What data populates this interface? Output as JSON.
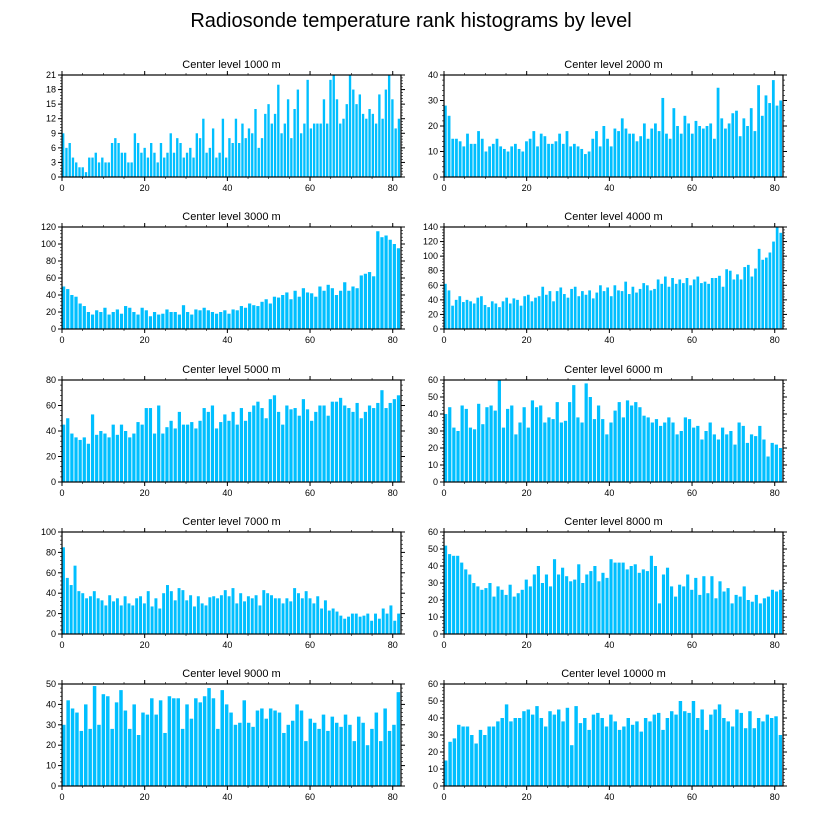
{
  "title": "Radiosonde temperature rank histograms by level",
  "bar_color": "#00BFFF",
  "chart_data": [
    {
      "type": "bar",
      "title": "Center level 1000 m",
      "xlim": [
        0,
        82
      ],
      "ylim": [
        0,
        21
      ],
      "yticks": [
        0,
        3,
        6,
        9,
        12,
        15,
        18,
        21
      ],
      "xticks": [
        0,
        20,
        40,
        60,
        80
      ],
      "values": [
        9,
        6,
        7,
        4,
        3,
        2,
        2,
        1,
        4,
        4,
        5,
        3,
        4,
        3,
        3,
        7,
        8,
        7,
        5,
        5,
        3,
        3,
        9,
        7,
        5,
        6,
        4,
        7,
        5,
        3,
        7,
        4,
        5,
        9,
        5,
        8,
        7,
        4,
        5,
        6,
        4,
        9,
        8,
        12,
        5,
        6,
        10,
        4,
        5,
        12,
        4,
        8,
        7,
        12,
        7,
        11,
        8,
        10,
        9,
        14,
        6,
        8,
        13,
        15,
        11,
        13,
        19,
        9,
        11,
        16,
        8,
        14,
        18,
        9,
        11,
        20,
        10,
        11,
        11,
        11,
        16,
        11,
        20,
        21,
        16,
        11,
        12,
        15,
        21,
        18,
        15,
        17,
        13,
        12,
        14,
        13,
        11,
        17,
        12,
        18,
        21,
        16,
        10,
        12
      ]
    },
    {
      "type": "bar",
      "title": "Center level 2000 m",
      "xlim": [
        0,
        82
      ],
      "ylim": [
        0,
        40
      ],
      "yticks": [
        0,
        10,
        20,
        30,
        40
      ],
      "xticks": [
        0,
        20,
        40,
        60,
        80
      ],
      "values": [
        28,
        24,
        15,
        15,
        14,
        12,
        17,
        13,
        13,
        18,
        15,
        10,
        12,
        13,
        15,
        12,
        11,
        10,
        12,
        13,
        11,
        10,
        14,
        15,
        18,
        12,
        17,
        16,
        13,
        13,
        14,
        17,
        13,
        18,
        12,
        13,
        12,
        11,
        9,
        10,
        15,
        18,
        12,
        20,
        15,
        12,
        19,
        18,
        23,
        19,
        17,
        17,
        14,
        16,
        21,
        15,
        19,
        21,
        18,
        31,
        17,
        15,
        27,
        20,
        17,
        24,
        21,
        17,
        22,
        20,
        19,
        20,
        21,
        15,
        35,
        23,
        19,
        21,
        25,
        26,
        16,
        23,
        20,
        27,
        18,
        36,
        24,
        32,
        29,
        38,
        28,
        30
      ]
    },
    {
      "type": "bar",
      "title": "Center level 3000 m",
      "xlim": [
        0,
        82
      ],
      "ylim": [
        0,
        120
      ],
      "yticks": [
        0,
        20,
        40,
        60,
        80,
        100,
        120
      ],
      "xticks": [
        0,
        20,
        40,
        60,
        80
      ],
      "values": [
        50,
        47,
        40,
        38,
        30,
        27,
        20,
        17,
        22,
        20,
        25,
        17,
        20,
        23,
        18,
        27,
        25,
        20,
        17,
        25,
        22,
        15,
        20,
        17,
        18,
        23,
        20,
        20,
        17,
        28,
        20,
        17,
        23,
        22,
        25,
        22,
        20,
        18,
        20,
        22,
        18,
        23,
        22,
        27,
        25,
        30,
        28,
        27,
        32,
        35,
        30,
        38,
        37,
        40,
        43,
        35,
        45,
        38,
        48,
        43,
        42,
        38,
        50,
        45,
        52,
        48,
        40,
        45,
        55,
        45,
        50,
        48,
        63,
        65,
        67,
        62,
        115,
        108,
        110,
        105,
        100,
        95
      ]
    },
    {
      "type": "bar",
      "title": "Center level 4000 m",
      "xlim": [
        0,
        82
      ],
      "ylim": [
        0,
        140
      ],
      "yticks": [
        0,
        20,
        40,
        60,
        80,
        100,
        120,
        140
      ],
      "xticks": [
        0,
        20,
        40,
        60,
        80
      ],
      "values": [
        62,
        53,
        32,
        40,
        45,
        37,
        40,
        38,
        35,
        43,
        45,
        33,
        30,
        38,
        35,
        30,
        38,
        43,
        35,
        42,
        40,
        32,
        45,
        47,
        38,
        43,
        45,
        58,
        47,
        52,
        38,
        52,
        57,
        48,
        43,
        55,
        58,
        45,
        52,
        47,
        53,
        42,
        50,
        60,
        52,
        57,
        45,
        60,
        53,
        52,
        65,
        48,
        58,
        50,
        55,
        63,
        60,
        53,
        55,
        68,
        62,
        72,
        58,
        70,
        62,
        68,
        63,
        70,
        60,
        68,
        72,
        63,
        65,
        62,
        70,
        70,
        73,
        58,
        82,
        80,
        68,
        75,
        68,
        85,
        88,
        72,
        83,
        110,
        95,
        98,
        105,
        120,
        140,
        132
      ]
    },
    {
      "type": "bar",
      "title": "Center level 5000 m",
      "xlim": [
        0,
        82
      ],
      "ylim": [
        0,
        80
      ],
      "yticks": [
        0,
        20,
        40,
        60,
        80
      ],
      "xticks": [
        0,
        20,
        40,
        60,
        80
      ],
      "values": [
        45,
        50,
        38,
        35,
        33,
        35,
        30,
        53,
        37,
        40,
        38,
        35,
        45,
        37,
        45,
        40,
        35,
        38,
        47,
        45,
        58,
        58,
        38,
        60,
        38,
        43,
        48,
        42,
        55,
        45,
        45,
        47,
        42,
        48,
        58,
        55,
        60,
        42,
        47,
        53,
        48,
        55,
        45,
        58,
        48,
        55,
        60,
        63,
        58,
        50,
        65,
        68,
        55,
        45,
        60,
        57,
        58,
        52,
        65,
        57,
        48,
        55,
        60,
        60,
        52,
        63,
        63,
        66,
        60,
        58,
        55,
        62,
        50,
        55,
        60,
        58,
        62,
        72,
        58,
        62,
        65,
        68
      ]
    },
    {
      "type": "bar",
      "title": "Center level 6000 m",
      "xlim": [
        0,
        82
      ],
      "ylim": [
        0,
        60
      ],
      "yticks": [
        0,
        10,
        20,
        30,
        40,
        50,
        60
      ],
      "xticks": [
        0,
        20,
        40,
        60,
        80
      ],
      "values": [
        40,
        44,
        32,
        30,
        45,
        43,
        32,
        31,
        46,
        34,
        44,
        45,
        42,
        60,
        32,
        43,
        45,
        28,
        35,
        44,
        32,
        48,
        44,
        45,
        35,
        38,
        37,
        47,
        35,
        36,
        47,
        57,
        38,
        35,
        58,
        50,
        37,
        45,
        37,
        28,
        35,
        42,
        47,
        38,
        48,
        45,
        47,
        44,
        39,
        38,
        35,
        37,
        33,
        35,
        38,
        35,
        28,
        30,
        38,
        37,
        32,
        33,
        25,
        30,
        35,
        28,
        25,
        32,
        28,
        30,
        22,
        35,
        33,
        23,
        28,
        27,
        33,
        25,
        15,
        23,
        22,
        20
      ]
    },
    {
      "type": "bar",
      "title": "Center level 7000 m",
      "xlim": [
        0,
        82
      ],
      "ylim": [
        0,
        100
      ],
      "yticks": [
        0,
        20,
        40,
        60,
        80,
        100
      ],
      "xticks": [
        0,
        20,
        40,
        60,
        80
      ],
      "values": [
        85,
        55,
        48,
        67,
        42,
        40,
        35,
        37,
        42,
        35,
        33,
        28,
        38,
        32,
        35,
        28,
        37,
        30,
        28,
        35,
        37,
        30,
        42,
        27,
        35,
        25,
        40,
        48,
        42,
        33,
        45,
        43,
        33,
        38,
        27,
        37,
        30,
        28,
        36,
        37,
        35,
        38,
        43,
        37,
        45,
        30,
        40,
        32,
        37,
        35,
        38,
        28,
        43,
        40,
        38,
        35,
        35,
        30,
        35,
        32,
        45,
        40,
        35,
        42,
        35,
        30,
        37,
        25,
        33,
        23,
        25,
        22,
        18,
        15,
        17,
        20,
        20,
        17,
        18,
        20,
        13,
        20,
        15,
        25,
        20,
        28,
        13,
        20
      ]
    },
    {
      "type": "bar",
      "title": "Center level 8000 m",
      "xlim": [
        0,
        82
      ],
      "ylim": [
        0,
        60
      ],
      "yticks": [
        0,
        10,
        20,
        30,
        40,
        50,
        60
      ],
      "xticks": [
        0,
        20,
        40,
        60,
        80
      ],
      "values": [
        52,
        47,
        46,
        46,
        42,
        38,
        35,
        30,
        28,
        26,
        27,
        30,
        22,
        28,
        26,
        23,
        29,
        22,
        24,
        26,
        32,
        28,
        35,
        40,
        30,
        35,
        28,
        44,
        35,
        39,
        34,
        31,
        32,
        41,
        30,
        35,
        37,
        40,
        31,
        36,
        33,
        44,
        42,
        42,
        42,
        38,
        40,
        41,
        36,
        38,
        37,
        46,
        40,
        18,
        35,
        39,
        28,
        22,
        29,
        28,
        35,
        26,
        33,
        23,
        34,
        24,
        34,
        21,
        31,
        25,
        27,
        18,
        23,
        22,
        28,
        20,
        19,
        23,
        18,
        21,
        22,
        26,
        25,
        26
      ]
    },
    {
      "type": "bar",
      "title": "Center level 9000 m",
      "xlim": [
        0,
        82
      ],
      "ylim": [
        0,
        50
      ],
      "yticks": [
        0,
        10,
        20,
        30,
        40,
        50
      ],
      "xticks": [
        0,
        20,
        40,
        60,
        80
      ],
      "values": [
        30,
        42,
        38,
        36,
        27,
        40,
        28,
        49,
        30,
        45,
        44,
        28,
        41,
        47,
        37,
        28,
        40,
        25,
        36,
        35,
        43,
        35,
        42,
        26,
        44,
        43,
        43,
        28,
        40,
        33,
        43,
        41,
        44,
        48,
        43,
        28,
        47,
        40,
        36,
        30,
        31,
        42,
        31,
        29,
        37,
        38,
        33,
        38,
        37,
        36,
        26,
        30,
        32,
        40,
        37,
        22,
        33,
        31,
        28,
        35,
        27,
        34,
        31,
        29,
        35,
        30,
        22,
        34,
        31,
        20,
        28,
        36,
        22,
        38,
        27,
        30,
        46
      ]
    },
    {
      "type": "bar",
      "title": "Center level 10000 m",
      "xlim": [
        0,
        82
      ],
      "ylim": [
        0,
        60
      ],
      "yticks": [
        0,
        10,
        20,
        30,
        40,
        50,
        60
      ],
      "xticks": [
        0,
        20,
        40,
        60,
        80
      ],
      "values": [
        15,
        26,
        28,
        36,
        35,
        35,
        30,
        25,
        33,
        30,
        35,
        35,
        38,
        40,
        48,
        38,
        40,
        40,
        44,
        45,
        42,
        47,
        40,
        35,
        44,
        42,
        45,
        38,
        46,
        24,
        47,
        37,
        40,
        33,
        42,
        43,
        40,
        35,
        42,
        38,
        33,
        35,
        40,
        36,
        38,
        32,
        40,
        38,
        42,
        43,
        33,
        40,
        44,
        42,
        50,
        44,
        43,
        50,
        40,
        45,
        33,
        42,
        45,
        48,
        40,
        38,
        35,
        45,
        43,
        34,
        44,
        34,
        40,
        38,
        42,
        40,
        41,
        30
      ]
    }
  ]
}
